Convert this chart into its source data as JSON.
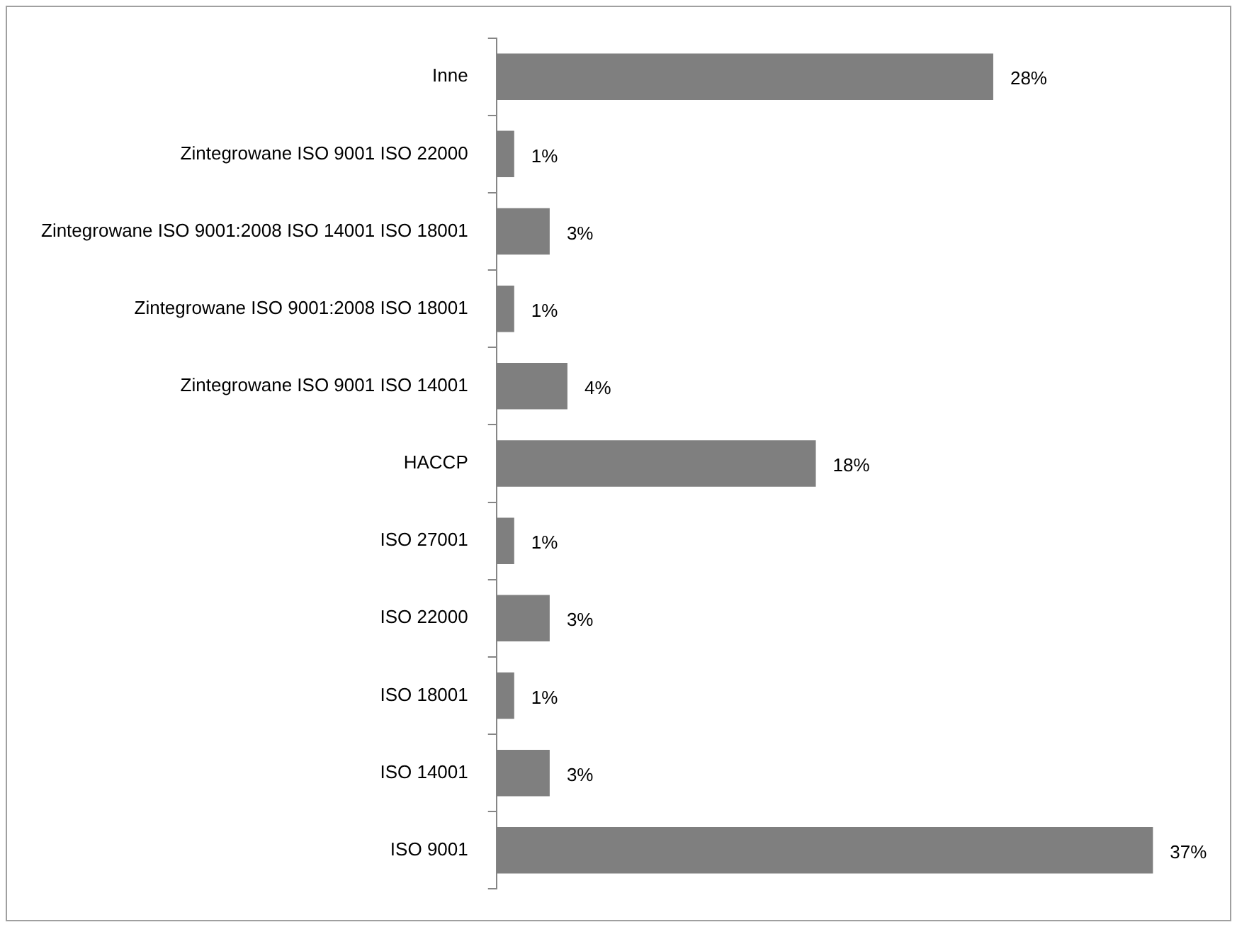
{
  "chart_data": {
    "type": "bar",
    "orientation": "horizontal",
    "categories": [
      "Inne",
      "Zintegrowane ISO 9001 ISO 22000",
      "Zintegrowane ISO 9001:2008 ISO 14001 ISO 18001",
      "Zintegrowane ISO 9001:2008 ISO 18001",
      "Zintegrowane ISO 9001 ISO 14001",
      "HACCP",
      "ISO 27001",
      "ISO 22000",
      "ISO 18001",
      "ISO 14001",
      "ISO 9001"
    ],
    "values": [
      28,
      1,
      3,
      1,
      4,
      18,
      1,
      3,
      1,
      3,
      37
    ],
    "value_labels": [
      "28%",
      "1%",
      "3%",
      "1%",
      "4%",
      "18%",
      "1%",
      "3%",
      "1%",
      "3%",
      "37%"
    ],
    "color": "#7f7f7f",
    "grid": false,
    "legend": false
  }
}
